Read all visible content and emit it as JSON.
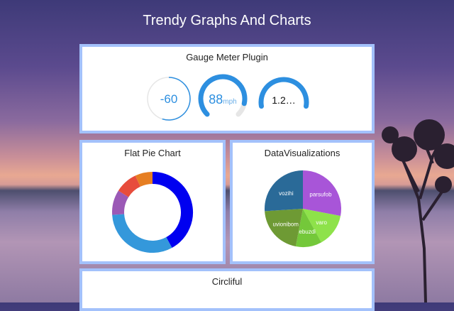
{
  "page": {
    "title": "Trendy Graphs And Charts"
  },
  "gauge": {
    "title": "Gauge Meter Plugin",
    "g1": {
      "value": "-60",
      "fraction": 0.55
    },
    "g2": {
      "value": "88",
      "unit": "mph",
      "fraction": 0.88
    },
    "g3": {
      "value": "1.2…",
      "fraction": 1.0
    },
    "colors": {
      "fill": "#2d8fe0",
      "track": "#e6e6e6"
    }
  },
  "flatpie": {
    "title": "Flat Pie Chart",
    "segments": [
      {
        "value": 42,
        "color": "#0000f0"
      },
      {
        "value": 32,
        "color": "#3498db"
      },
      {
        "value": 10,
        "color": "#9b59b6"
      },
      {
        "value": 9,
        "color": "#e74c3c"
      },
      {
        "value": 7,
        "color": "#e67e22"
      }
    ]
  },
  "dataviz": {
    "title": "DataVisualizations",
    "slices": [
      {
        "label": "parsufob",
        "value": 28,
        "color": "#a855d8"
      },
      {
        "label": "varo",
        "value": 14,
        "color": "#8ee24a"
      },
      {
        "label": "febuzdi",
        "value": 11,
        "color": "#74c83a"
      },
      {
        "label": "uvionibom",
        "value": 21,
        "color": "#6e9a34"
      },
      {
        "label": "vozihi",
        "value": 26,
        "color": "#2a6a98"
      }
    ]
  },
  "circliful": {
    "title": "Circliful"
  }
}
